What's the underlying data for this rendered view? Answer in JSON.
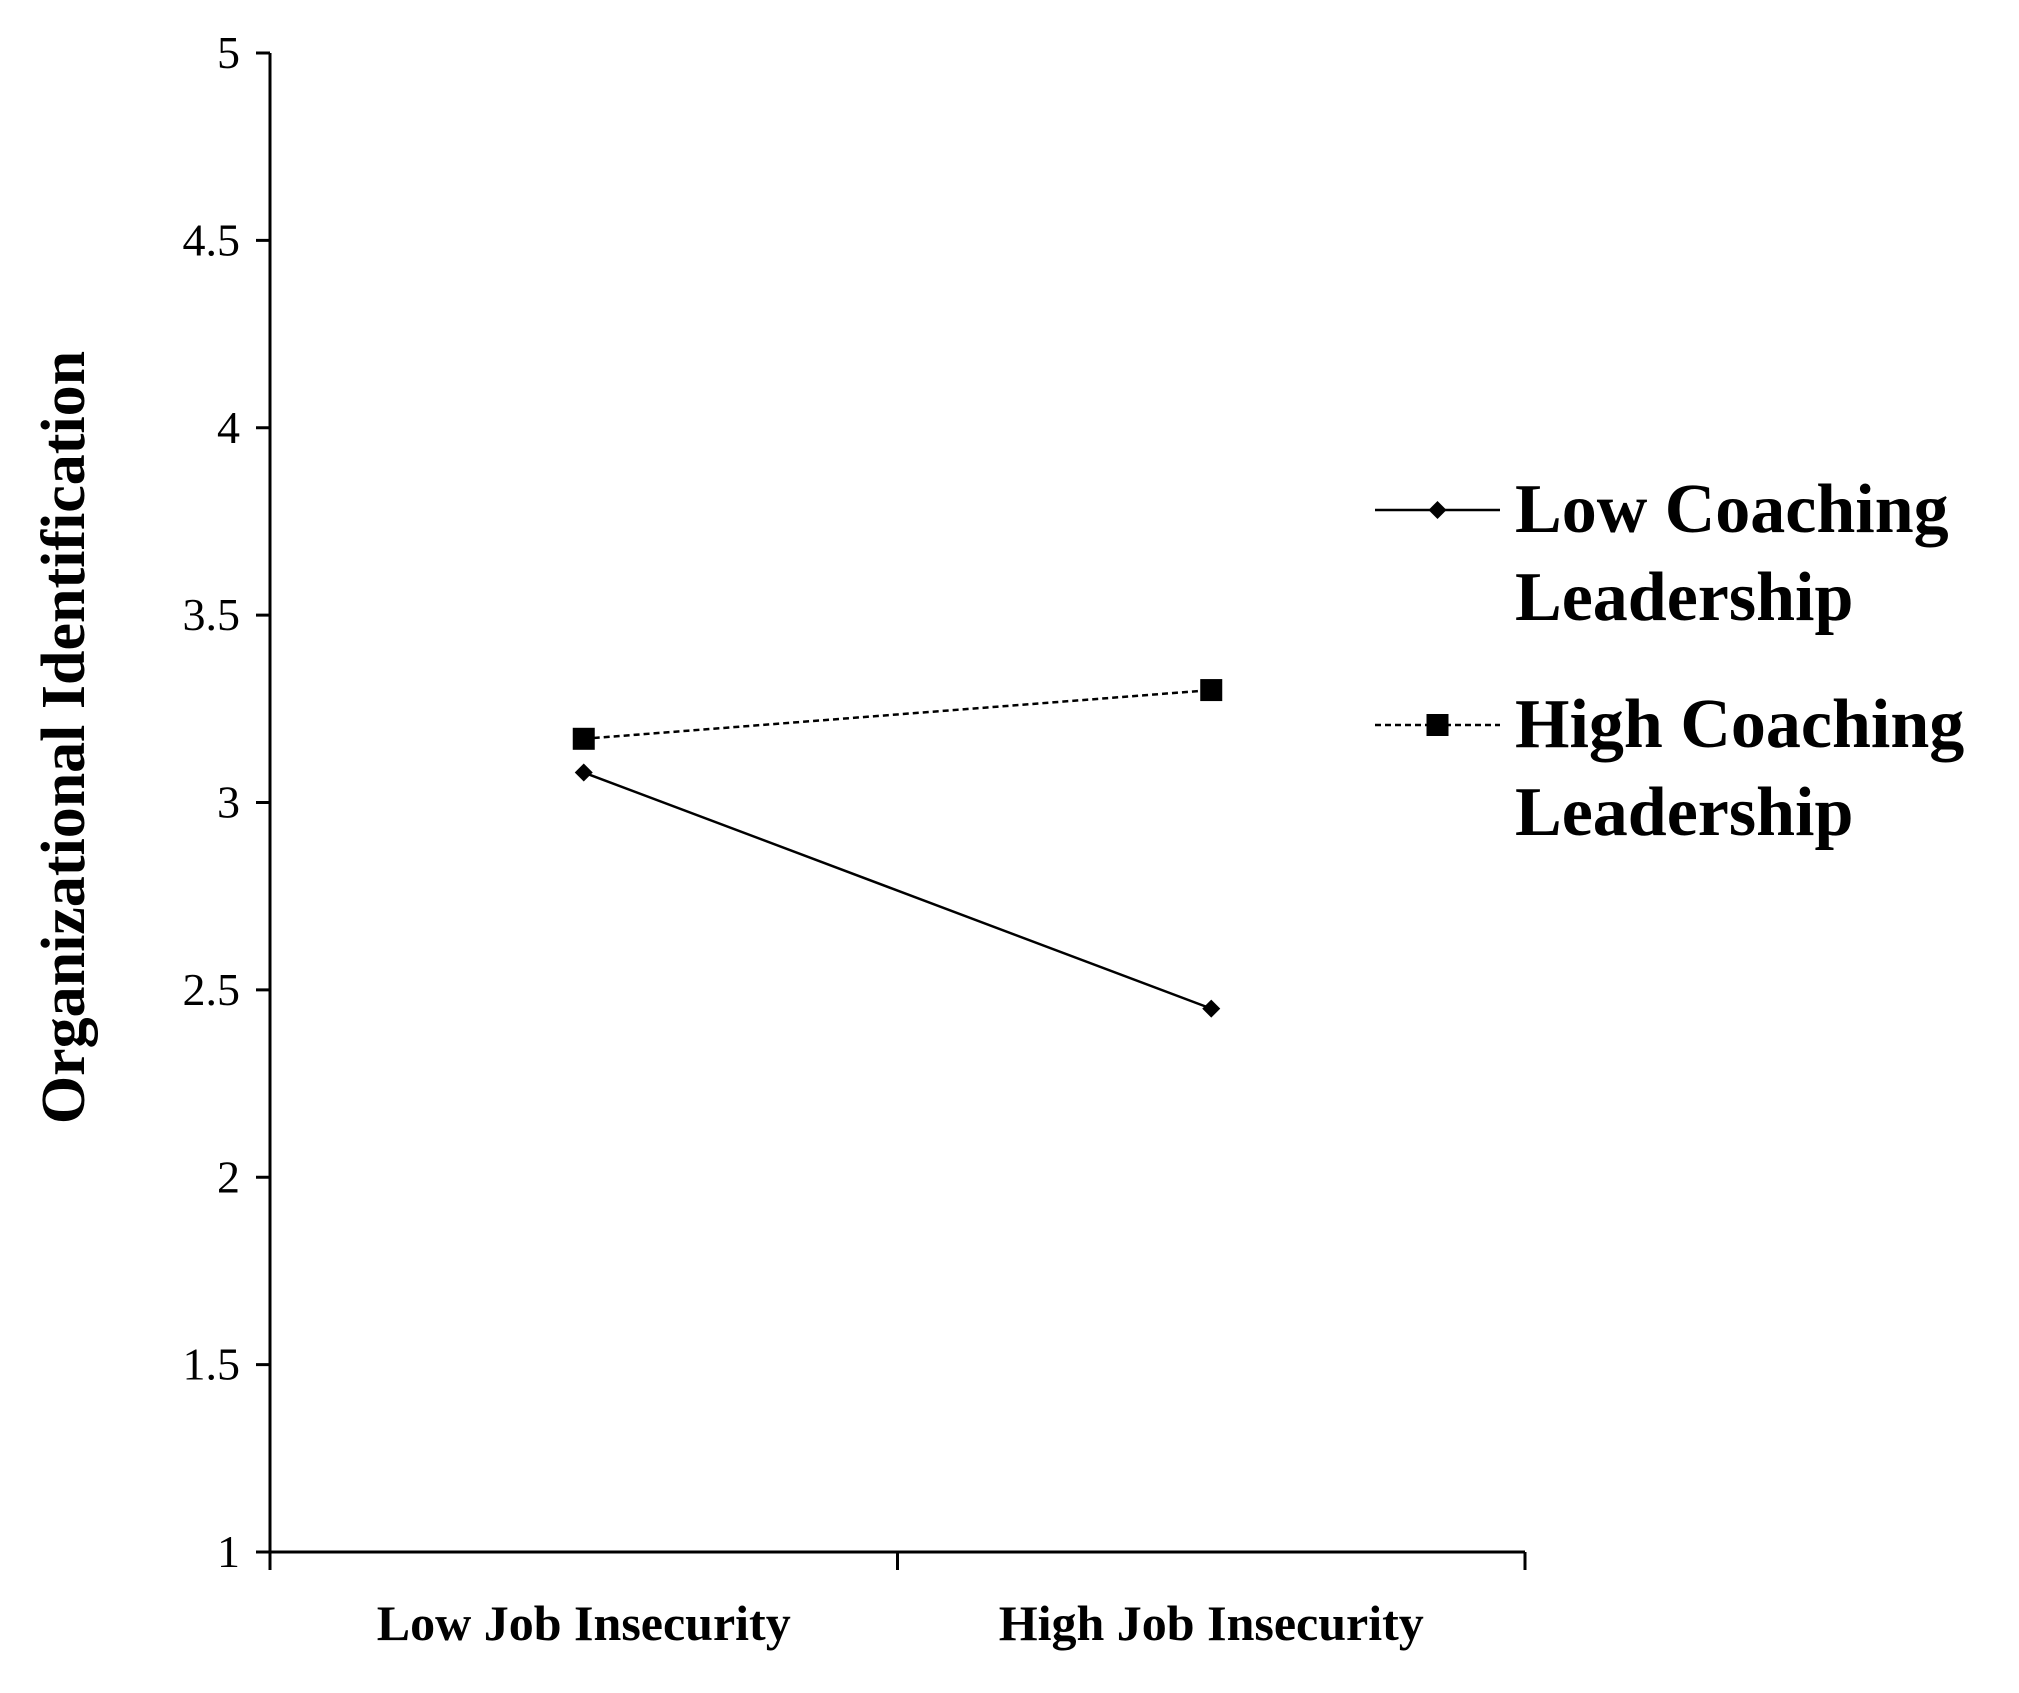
{
  "chart_data": {
    "type": "line",
    "title": "",
    "xlabel": "",
    "ylabel": "Organizational Identification",
    "categories": [
      "Low Job Insecurity",
      "High Job Insecurity"
    ],
    "ylim": [
      1,
      5
    ],
    "yticks": [
      "1",
      "1.5",
      "2",
      "2.5",
      "3",
      "3.5",
      "4",
      "4.5",
      "5"
    ],
    "grid": false,
    "legend_position": "right",
    "series": [
      {
        "name": "Low Coaching Leadership",
        "name_lines": [
          "Low Coaching",
          "Leadership"
        ],
        "values": [
          3.08,
          2.45
        ],
        "line_style": "solid",
        "marker": "diamond",
        "color": "#000000"
      },
      {
        "name": "High Coaching Leadership",
        "name_lines": [
          "High Coaching",
          "Leadership"
        ],
        "values": [
          3.17,
          3.3
        ],
        "line_style": "dotted",
        "marker": "square",
        "color": "#000000"
      }
    ]
  }
}
